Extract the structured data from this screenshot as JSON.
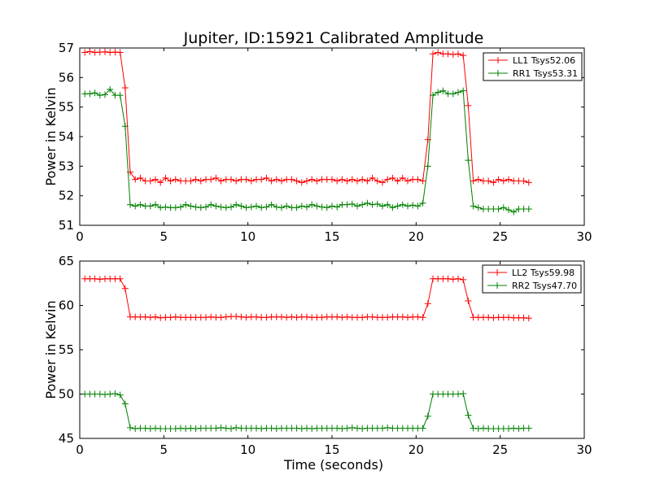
{
  "chart_data": [
    {
      "type": "line",
      "title": "Jupiter, ID:15921 Calibrated Amplitude",
      "xlabel": "",
      "ylabel": "Power in Kelvin",
      "xlim": [
        0,
        30
      ],
      "ylim": [
        51,
        57
      ],
      "xticks": [
        0,
        5,
        10,
        15,
        20,
        25,
        30
      ],
      "yticks": [
        51,
        52,
        53,
        54,
        55,
        56,
        57
      ],
      "grid": false,
      "legend_position": "top-right",
      "x": [
        0.3,
        0.6,
        0.9,
        1.2,
        1.5,
        1.8,
        2.1,
        2.4,
        2.7,
        3.0,
        3.3,
        3.6,
        3.9,
        4.2,
        4.5,
        4.8,
        5.1,
        5.4,
        5.7,
        6.0,
        6.3,
        6.6,
        6.9,
        7.2,
        7.5,
        7.8,
        8.1,
        8.4,
        8.7,
        9.0,
        9.3,
        9.6,
        9.9,
        10.2,
        10.5,
        10.8,
        11.1,
        11.4,
        11.7,
        12.0,
        12.3,
        12.6,
        12.9,
        13.2,
        13.5,
        13.8,
        14.1,
        14.4,
        14.7,
        15.0,
        15.3,
        15.6,
        15.9,
        16.2,
        16.5,
        16.8,
        17.1,
        17.4,
        17.7,
        18.0,
        18.3,
        18.6,
        18.9,
        19.2,
        19.5,
        19.8,
        20.1,
        20.4,
        20.7,
        21.0,
        21.3,
        21.6,
        21.9,
        22.2,
        22.5,
        22.8,
        23.1,
        23.4,
        23.7,
        24.0,
        24.3,
        24.6,
        24.9,
        25.2,
        25.5,
        25.8,
        26.1,
        26.4,
        26.7
      ],
      "series": [
        {
          "name": "LL1 Tsys52.06",
          "color": "#ff0000",
          "values": [
            56.85,
            56.88,
            56.85,
            56.86,
            56.87,
            56.85,
            56.86,
            56.85,
            55.65,
            52.8,
            52.55,
            52.6,
            52.5,
            52.5,
            52.55,
            52.45,
            52.6,
            52.5,
            52.55,
            52.5,
            52.5,
            52.5,
            52.55,
            52.5,
            52.55,
            52.55,
            52.6,
            52.5,
            52.55,
            52.55,
            52.5,
            52.55,
            52.55,
            52.5,
            52.55,
            52.55,
            52.6,
            52.5,
            52.55,
            52.5,
            52.55,
            52.55,
            52.5,
            52.45,
            52.5,
            52.55,
            52.5,
            52.55,
            52.55,
            52.55,
            52.5,
            52.55,
            52.5,
            52.55,
            52.5,
            52.55,
            52.5,
            52.6,
            52.5,
            52.45,
            52.55,
            52.6,
            52.5,
            52.6,
            52.5,
            52.55,
            52.55,
            52.5,
            53.9,
            56.8,
            56.85,
            56.8,
            56.8,
            56.78,
            56.8,
            56.75,
            55.05,
            52.5,
            52.55,
            52.5,
            52.5,
            52.45,
            52.55,
            52.5,
            52.55,
            52.5,
            52.5,
            52.5,
            52.45
          ]
        },
        {
          "name": "RR1 Tsys53.31",
          "color": "#008000",
          "values": [
            55.45,
            55.45,
            55.48,
            55.4,
            55.42,
            55.6,
            55.4,
            55.4,
            54.35,
            51.7,
            51.65,
            51.7,
            51.65,
            51.65,
            51.7,
            51.6,
            51.62,
            51.6,
            51.6,
            51.62,
            51.7,
            51.65,
            51.62,
            51.6,
            51.62,
            51.7,
            51.65,
            51.62,
            51.6,
            51.62,
            51.7,
            51.65,
            51.6,
            51.62,
            51.65,
            51.6,
            51.62,
            51.7,
            51.62,
            51.6,
            51.65,
            51.6,
            51.6,
            51.65,
            51.62,
            51.7,
            51.65,
            51.62,
            51.6,
            51.65,
            51.62,
            51.7,
            51.7,
            51.72,
            51.65,
            51.7,
            51.75,
            51.7,
            51.72,
            51.65,
            51.7,
            51.6,
            51.65,
            51.7,
            51.65,
            51.68,
            51.65,
            51.75,
            53.0,
            55.4,
            55.5,
            55.55,
            55.45,
            55.45,
            55.5,
            55.55,
            53.2,
            51.65,
            51.6,
            51.55,
            51.55,
            51.55,
            51.55,
            51.6,
            51.52,
            51.45,
            51.55,
            51.55,
            51.55
          ]
        }
      ]
    },
    {
      "type": "line",
      "title": "",
      "xlabel": "Time (seconds)",
      "ylabel": "Power in Kelvin",
      "xlim": [
        0,
        30
      ],
      "ylim": [
        45,
        65
      ],
      "xticks": [
        0,
        5,
        10,
        15,
        20,
        25,
        30
      ],
      "yticks": [
        45,
        50,
        55,
        60,
        65
      ],
      "grid": false,
      "legend_position": "top-right",
      "x": [
        0.3,
        0.6,
        0.9,
        1.2,
        1.5,
        1.8,
        2.1,
        2.4,
        2.7,
        3.0,
        3.3,
        3.6,
        3.9,
        4.2,
        4.5,
        4.8,
        5.1,
        5.4,
        5.7,
        6.0,
        6.3,
        6.6,
        6.9,
        7.2,
        7.5,
        7.8,
        8.1,
        8.4,
        8.7,
        9.0,
        9.3,
        9.6,
        9.9,
        10.2,
        10.5,
        10.8,
        11.1,
        11.4,
        11.7,
        12.0,
        12.3,
        12.6,
        12.9,
        13.2,
        13.5,
        13.8,
        14.1,
        14.4,
        14.7,
        15.0,
        15.3,
        15.6,
        15.9,
        16.2,
        16.5,
        16.8,
        17.1,
        17.4,
        17.7,
        18.0,
        18.3,
        18.6,
        18.9,
        19.2,
        19.5,
        19.8,
        20.1,
        20.4,
        20.7,
        21.0,
        21.3,
        21.6,
        21.9,
        22.2,
        22.5,
        22.8,
        23.1,
        23.4,
        23.7,
        24.0,
        24.3,
        24.6,
        24.9,
        25.2,
        25.5,
        25.8,
        26.1,
        26.4,
        26.7
      ],
      "series": [
        {
          "name": "LL2 Tsys59.98",
          "color": "#ff0000",
          "values": [
            63.0,
            63.0,
            63.0,
            62.95,
            63.0,
            63.0,
            63.0,
            63.0,
            61.9,
            58.7,
            58.7,
            58.7,
            58.7,
            58.65,
            58.7,
            58.6,
            58.65,
            58.65,
            58.7,
            58.65,
            58.65,
            58.65,
            58.65,
            58.65,
            58.65,
            58.7,
            58.65,
            58.65,
            58.7,
            58.75,
            58.75,
            58.7,
            58.65,
            58.7,
            58.7,
            58.65,
            58.65,
            58.7,
            58.7,
            58.7,
            58.65,
            58.7,
            58.65,
            58.7,
            58.7,
            58.65,
            58.65,
            58.65,
            58.7,
            58.7,
            58.7,
            58.65,
            58.7,
            58.65,
            58.65,
            58.65,
            58.7,
            58.7,
            58.65,
            58.65,
            58.65,
            58.7,
            58.7,
            58.7,
            58.65,
            58.7,
            58.7,
            58.65,
            60.2,
            63.0,
            63.0,
            63.0,
            63.0,
            62.95,
            63.0,
            62.9,
            60.5,
            58.65,
            58.65,
            58.65,
            58.65,
            58.6,
            58.65,
            58.65,
            58.65,
            58.6,
            58.6,
            58.6,
            58.55
          ]
        },
        {
          "name": "RR2 Tsys47.70",
          "color": "#008000",
          "values": [
            50.0,
            50.0,
            50.0,
            50.0,
            49.95,
            50.0,
            50.05,
            49.9,
            48.9,
            46.2,
            46.1,
            46.15,
            46.15,
            46.1,
            46.15,
            46.1,
            46.1,
            46.1,
            46.1,
            46.15,
            46.1,
            46.15,
            46.1,
            46.15,
            46.15,
            46.15,
            46.15,
            46.2,
            46.15,
            46.1,
            46.2,
            46.15,
            46.15,
            46.15,
            46.15,
            46.1,
            46.15,
            46.15,
            46.1,
            46.15,
            46.15,
            46.15,
            46.15,
            46.1,
            46.15,
            46.1,
            46.15,
            46.15,
            46.15,
            46.15,
            46.15,
            46.1,
            46.15,
            46.2,
            46.15,
            46.1,
            46.15,
            46.15,
            46.15,
            46.15,
            46.2,
            46.15,
            46.15,
            46.15,
            46.15,
            46.15,
            46.15,
            46.15,
            47.5,
            50.0,
            50.0,
            50.0,
            50.0,
            50.0,
            50.0,
            50.05,
            47.6,
            46.15,
            46.1,
            46.15,
            46.1,
            46.1,
            46.1,
            46.1,
            46.1,
            46.15,
            46.1,
            46.15,
            46.15
          ]
        }
      ]
    }
  ]
}
